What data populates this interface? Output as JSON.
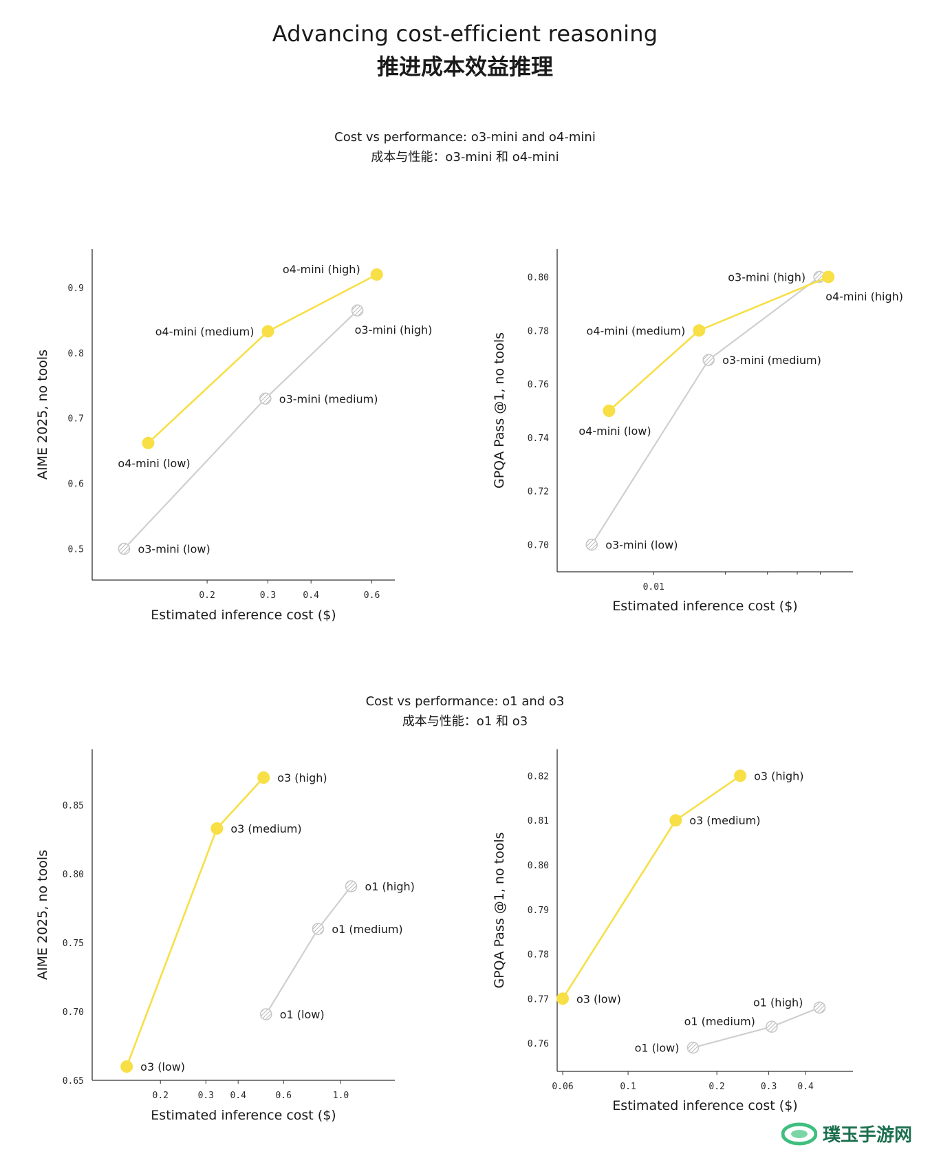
{
  "title_en": "Advancing cost-efficient reasoning",
  "title_zh": "推进成本效益推理",
  "section1": {
    "title_en": "Cost vs performance: o3-mini and o4-mini",
    "title_zh": "成本与性能：o3-mini 和 o4-mini"
  },
  "section2": {
    "title_en": "Cost vs performance: o1 and o3",
    "title_zh": "成本与性能：o1 和 o3"
  },
  "colors": {
    "yellow": "#f7df45",
    "gray": "#cfcfcf",
    "axis": "#333333"
  },
  "watermark": "璞玉手游网",
  "chart_data": [
    {
      "id": "c1",
      "type": "line",
      "xscale": "log",
      "xlabel": "Estimated inference cost ($)",
      "ylabel": "AIME 2025, no tools",
      "xticks": [
        0.2,
        0.3,
        0.4,
        0.6
      ],
      "xtick_labels": [
        "0.2",
        "0.3",
        "0.4",
        "0.6"
      ],
      "yticks": [
        0.5,
        0.6,
        0.7,
        0.8,
        0.9
      ],
      "ytick_labels": [
        "0.5",
        "0.6",
        "0.7",
        "0.8",
        "0.9"
      ],
      "xlim": [
        0.1,
        0.65
      ],
      "ylim": [
        0.47,
        0.94
      ],
      "series": [
        {
          "name": "o3-mini",
          "style": "gray",
          "points": [
            {
              "x": 0.115,
              "y": 0.5,
              "label": "o3-mini (low)",
              "pos": "right"
            },
            {
              "x": 0.295,
              "y": 0.73,
              "label": "o3-mini (medium)",
              "pos": "right"
            },
            {
              "x": 0.545,
              "y": 0.865,
              "label": "o3-mini (high)",
              "pos": "below-right"
            }
          ]
        },
        {
          "name": "o4-mini",
          "style": "yellow",
          "points": [
            {
              "x": 0.135,
              "y": 0.662,
              "label": "o4-mini (low)",
              "pos": "below"
            },
            {
              "x": 0.3,
              "y": 0.833,
              "label": "o4-mini (medium)",
              "pos": "left"
            },
            {
              "x": 0.62,
              "y": 0.92,
              "label": "o4-mini (high)",
              "pos": "above-left"
            }
          ]
        }
      ]
    },
    {
      "id": "c2",
      "type": "line",
      "xscale": "log",
      "xlabel": "Estimated inference cost ($)",
      "ylabel": "GPQA Pass @1, no tools",
      "xticks": [
        0.01
      ],
      "xtick_labels": [
        "0.01"
      ],
      "yticks": [
        0.7,
        0.72,
        0.74,
        0.76,
        0.78,
        0.8
      ],
      "ytick_labels": [
        "0.70",
        "0.72",
        "0.74",
        "0.76",
        "0.78",
        "0.80"
      ],
      "xlim": [
        0.0045,
        0.062
      ],
      "ylim": [
        0.695,
        0.805
      ],
      "series": [
        {
          "name": "o3-mini",
          "style": "gray",
          "points": [
            {
              "x": 0.0055,
              "y": 0.7,
              "label": "o3-mini (low)",
              "pos": "right"
            },
            {
              "x": 0.017,
              "y": 0.769,
              "label": "o3-mini (medium)",
              "pos": "right"
            },
            {
              "x": 0.0495,
              "y": 0.8,
              "label": "o3-mini (high)",
              "pos": "left"
            }
          ]
        },
        {
          "name": "o4-mini",
          "style": "yellow",
          "points": [
            {
              "x": 0.0065,
              "y": 0.75,
              "label": "o4-mini (low)",
              "pos": "below"
            },
            {
              "x": 0.0155,
              "y": 0.78,
              "label": "o4-mini (medium)",
              "pos": "left"
            },
            {
              "x": 0.054,
              "y": 0.8,
              "label": "o4-mini (high)",
              "pos": "below-right"
            }
          ]
        }
      ]
    },
    {
      "id": "c3",
      "type": "line",
      "xscale": "log",
      "xlabel": "Estimated inference cost ($)",
      "ylabel": "AIME 2025, no tools",
      "xticks": [
        0.2,
        0.3,
        0.4,
        0.6,
        1.0
      ],
      "xtick_labels": [
        "0.2",
        "0.3",
        "0.4",
        "0.6",
        "1.0"
      ],
      "yticks": [
        0.65,
        0.7,
        0.75,
        0.8,
        0.85
      ],
      "ytick_labels": [
        "0.65",
        "0.70",
        "0.75",
        "0.80",
        "0.85"
      ],
      "xlim": [
        0.12,
        1.38
      ],
      "ylim": [
        0.65,
        0.88
      ],
      "series": [
        {
          "name": "o3",
          "style": "yellow",
          "points": [
            {
              "x": 0.148,
              "y": 0.66,
              "label": "o3 (low)",
              "pos": "right"
            },
            {
              "x": 0.331,
              "y": 0.833,
              "label": "o3 (medium)",
              "pos": "right"
            },
            {
              "x": 0.502,
              "y": 0.87,
              "label": "o3 (high)",
              "pos": "right"
            }
          ]
        },
        {
          "name": "o1",
          "style": "gray",
          "points": [
            {
              "x": 0.513,
              "y": 0.698,
              "label": "o1 (low)",
              "pos": "right"
            },
            {
              "x": 0.816,
              "y": 0.76,
              "label": "o1 (medium)",
              "pos": "right"
            },
            {
              "x": 1.096,
              "y": 0.791,
              "label": "o1 (high)",
              "pos": "right"
            }
          ]
        }
      ]
    },
    {
      "id": "c4",
      "type": "line",
      "xscale": "log",
      "xlabel": "Estimated inference cost ($)",
      "ylabel": "GPQA Pass @1, no tools",
      "xticks": [
        0.06,
        0.1,
        0.2,
        0.3,
        0.4
      ],
      "xtick_labels": [
        "0.06",
        "0.1",
        "0.2",
        "0.3",
        "0.4"
      ],
      "yticks": [
        0.76,
        0.77,
        0.78,
        0.79,
        0.8,
        0.81,
        0.82
      ],
      "ytick_labels": [
        "0.76",
        "0.77",
        "0.78",
        "0.79",
        "0.80",
        "0.81",
        "0.82"
      ],
      "xlim": [
        0.06,
        0.52
      ],
      "ylim": [
        0.756,
        0.823
      ],
      "series": [
        {
          "name": "o3",
          "style": "yellow",
          "points": [
            {
              "x": 0.06,
              "y": 0.77,
              "label": "o3 (low)",
              "pos": "right"
            },
            {
              "x": 0.145,
              "y": 0.81,
              "label": "o3 (medium)",
              "pos": "right"
            },
            {
              "x": 0.24,
              "y": 0.82,
              "label": "o3 (high)",
              "pos": "right"
            }
          ]
        },
        {
          "name": "o1",
          "style": "gray",
          "points": [
            {
              "x": 0.166,
              "y": 0.759,
              "label": "o1 (low)",
              "pos": "left"
            },
            {
              "x": 0.307,
              "y": 0.7637,
              "label": "o1 (medium)",
              "pos": "above-left"
            },
            {
              "x": 0.446,
              "y": 0.768,
              "label": "o1 (high)",
              "pos": "above-left"
            }
          ]
        }
      ]
    }
  ]
}
